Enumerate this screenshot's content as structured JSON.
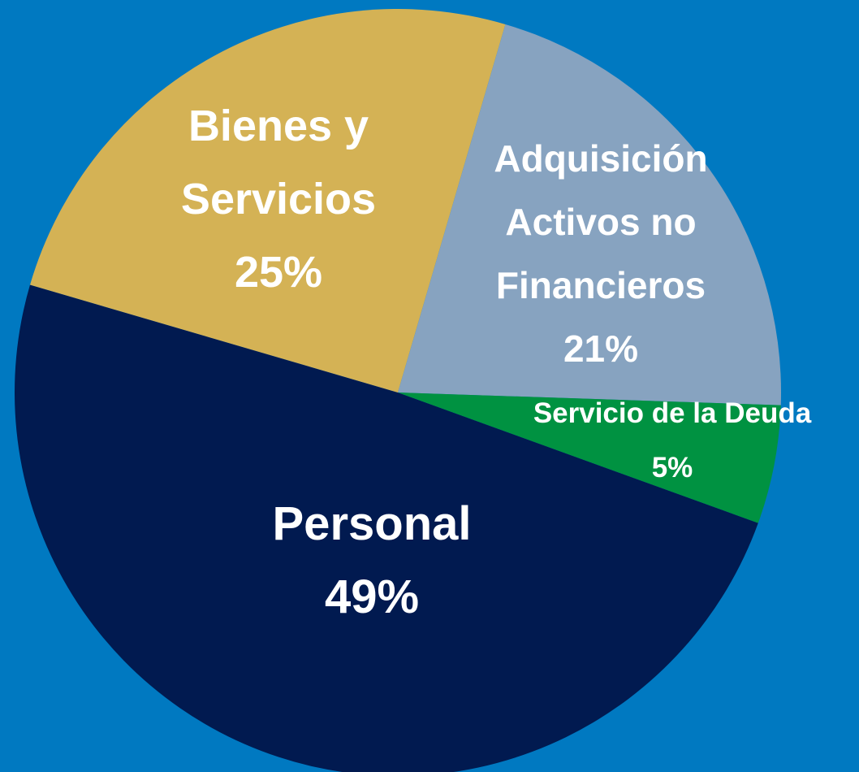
{
  "chart_data": {
    "type": "pie",
    "categories": [
      "Personal",
      "Bienes y Servicios",
      "Adquisición Activos no Financieros",
      "Servicio de la Deuda"
    ],
    "values": [
      49,
      25,
      21,
      5
    ],
    "value_labels": [
      "49%",
      "25%",
      "21%",
      "5%"
    ],
    "colors": [
      "#011a50",
      "#d4b255",
      "#87a3c0",
      "#009241"
    ]
  }
}
